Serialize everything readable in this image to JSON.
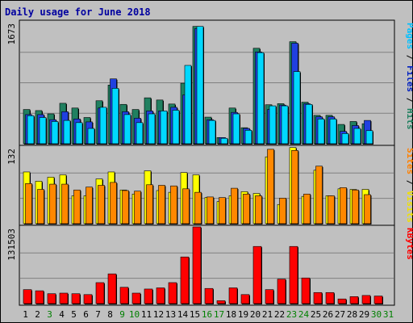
{
  "chart_data": {
    "type": "bar",
    "title": "Daily usage for June 2018",
    "categories": [
      "1",
      "2",
      "3",
      "4",
      "5",
      "6",
      "7",
      "8",
      "9",
      "10",
      "11",
      "12",
      "13",
      "14",
      "15",
      "16",
      "17",
      "18",
      "19",
      "20",
      "21",
      "22",
      "23",
      "24",
      "25",
      "26",
      "27",
      "28",
      "29",
      "30",
      "31"
    ],
    "weekend_days": [
      "3",
      "9",
      "10",
      "16",
      "17",
      "23",
      "24",
      "30",
      "31"
    ],
    "panels": [
      {
        "id": "pages-files-hits",
        "ymax_label": "1673",
        "ymax": 1673,
        "side_label": [
          {
            "text": "Pages",
            "color": "#00c0ff"
          },
          {
            "text": " / ",
            "color": "#000000"
          },
          {
            "text": "Files",
            "color": "#0020c0"
          },
          {
            "text": " / ",
            "color": "#000000"
          },
          {
            "text": "Hits",
            "color": "#208060"
          }
        ],
        "series": [
          {
            "name": "Hits",
            "color": "#208060",
            "values": [
              470,
              455,
              410,
              555,
              490,
              360,
              590,
              805,
              540,
              470,
              630,
              600,
              545,
              830,
              1610,
              365,
              85,
              490,
              220,
              1310,
              535,
              550,
              1400,
              570,
              390,
              390,
              265,
              305,
              275,
              0,
              0
            ]
          },
          {
            "name": "Files",
            "color": "#2040e0",
            "values": [
              400,
              400,
              330,
              440,
              340,
              300,
              490,
              890,
              440,
              350,
              450,
              450,
              500,
              670,
              1580,
              330,
              85,
              430,
              210,
              1260,
              470,
              530,
              1380,
              550,
              370,
              370,
              170,
              250,
              320,
              0,
              0
            ]
          },
          {
            "name": "Pages",
            "color": "#00d8ff",
            "values": [
              385,
              360,
              305,
              320,
              290,
              210,
              500,
              760,
              400,
              290,
              410,
              450,
              460,
              1075,
              1610,
              320,
              75,
              410,
              185,
              1250,
              520,
              520,
              990,
              540,
              340,
              340,
              140,
              210,
              180,
              0,
              0
            ]
          }
        ]
      },
      {
        "id": "visits-sites",
        "ymax_label": "132",
        "ymax": 132,
        "side_label": [
          {
            "text": "Sites",
            "color": "#ff8000"
          },
          {
            "text": " / ",
            "color": "#000000"
          },
          {
            "text": "Visits",
            "color": "#f0e000"
          }
        ],
        "series": [
          {
            "name": "Visits",
            "color": "#ffff00",
            "values": [
              89,
              73,
              80,
              84,
              48,
              48,
              77,
              89,
              58,
              51,
              91,
              57,
              54,
              88,
              84,
              45,
              38,
              48,
              55,
              52,
              115,
              33,
              131,
              47,
              92,
              48,
              60,
              59,
              59,
              0,
              0
            ]
          },
          {
            "name": "Sites",
            "color": "#ff8800",
            "values": [
              69,
              59,
              68,
              68,
              58,
              63,
              66,
              71,
              57,
              56,
              67,
              66,
              65,
              60,
              54,
              46,
              45,
              61,
              51,
              48,
              128,
              44,
              126,
              51,
              99,
              48,
              62,
              58,
              50,
              0,
              0
            ]
          }
        ]
      },
      {
        "id": "kbytes",
        "ymax_label": "131503",
        "ymax": 131503,
        "side_label": [
          {
            "text": "KBytes",
            "color": "#ff0000"
          }
        ],
        "series": [
          {
            "name": "KBytes",
            "color": "#ff0000",
            "values": [
              24000,
              22000,
              17000,
              18000,
              17000,
              15500,
              36000,
              51000,
              28000,
              18000,
              25000,
              27000,
              36000,
              80000,
              131503,
              26000,
              5000,
              27000,
              15500,
              98000,
              24000,
              42000,
              98000,
              44000,
              19000,
              19000,
              8000,
              12000,
              14000,
              13000,
              0
            ]
          }
        ]
      }
    ]
  }
}
